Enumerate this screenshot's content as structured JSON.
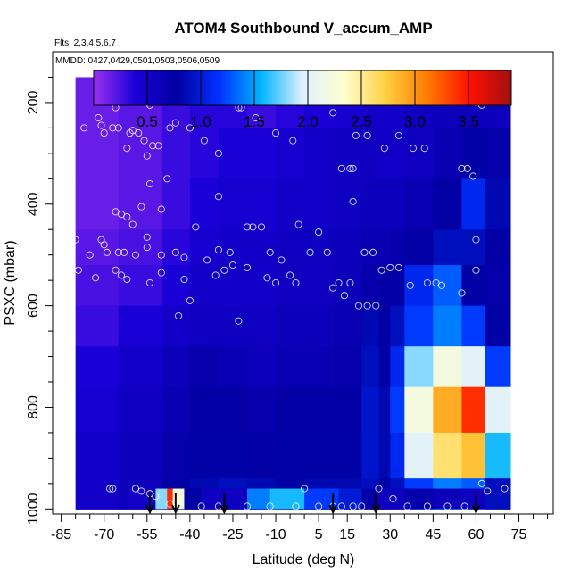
{
  "chart_data": {
    "type": "heatmap",
    "title": "ATOM4 Southbound V_accum_AMP",
    "subtitle_flights": "Flts: 2,3,4,5,6,7",
    "subtitle_dates": "MMDD: 0427,0429,0501,0503,0506,0509",
    "xlabel": "Latitude (deg N)",
    "ylabel": "PSXC (mbar)",
    "xlim": [
      -88,
      87
    ],
    "ylim": [
      1010,
      100
    ],
    "x_ticks": [
      -85,
      -70,
      -55,
      -40,
      -25,
      -10,
      5,
      15,
      30,
      45,
      60,
      75
    ],
    "x_tick_labels": [
      "-85",
      "-70",
      "-55",
      "-40",
      "-25",
      "-10",
      "5",
      "15",
      "30",
      "45",
      "60",
      "75"
    ],
    "y_ticks": [
      200,
      400,
      600,
      800,
      1000
    ],
    "y_tick_labels": [
      "200",
      "400",
      "600",
      "800",
      "1000"
    ],
    "colorbar": {
      "range": [
        0,
        3.9
      ],
      "ticks": [
        0.5,
        1.0,
        1.5,
        2.0,
        2.5,
        3.0,
        3.5
      ],
      "tick_labels": [
        "0.5",
        "1.0",
        "1.5",
        "2.0",
        "2.5",
        "3.0",
        "3.5"
      ],
      "colors": [
        "#9a30f0",
        "#1a00d8",
        "#0000a0",
        "#0030ff",
        "#00b4ff",
        "#dff0ff",
        "#ffffcf",
        "#ffd040",
        "#ff7a00",
        "#ff1000",
        "#a01010"
      ]
    },
    "field": {
      "lat_edges": [
        -80,
        -65,
        -50,
        -40,
        -30,
        -20,
        -10,
        0,
        10,
        20,
        26,
        30,
        35,
        45,
        55,
        63,
        72
      ],
      "pres_edges": [
        150,
        250,
        350,
        450,
        520,
        600,
        680,
        760,
        850,
        940,
        1000
      ],
      "values": [
        [
          0.15,
          0.2,
          0.3,
          0.35,
          0.35,
          0.3,
          0.35,
          0.4,
          0.45,
          0.5,
          0.5,
          0.5,
          0.55,
          0.6,
          0.6,
          0.6
        ],
        [
          0.15,
          0.2,
          0.3,
          0.35,
          0.4,
          0.4,
          0.45,
          0.5,
          0.55,
          0.55,
          0.5,
          0.5,
          0.55,
          0.65,
          0.8,
          0.7
        ],
        [
          0.15,
          0.2,
          0.3,
          0.4,
          0.45,
          0.45,
          0.5,
          0.5,
          0.55,
          0.6,
          0.6,
          0.6,
          0.65,
          0.75,
          1.1,
          0.85
        ],
        [
          0.2,
          0.25,
          0.35,
          0.45,
          0.5,
          0.5,
          0.55,
          0.55,
          0.6,
          0.65,
          0.65,
          0.7,
          0.75,
          0.9,
          0.9,
          0.75
        ],
        [
          0.25,
          0.3,
          0.4,
          0.5,
          0.5,
          0.5,
          0.55,
          0.55,
          0.6,
          0.7,
          0.75,
          0.75,
          1.1,
          1.3,
          0.8,
          0.7
        ],
        [
          0.3,
          0.4,
          0.5,
          0.55,
          0.55,
          0.55,
          0.6,
          0.6,
          0.65,
          0.85,
          0.75,
          0.9,
          1.2,
          1.4,
          1.2,
          0.8
        ],
        [
          0.4,
          0.5,
          0.6,
          0.7,
          0.65,
          0.6,
          0.65,
          0.65,
          0.7,
          0.9,
          0.8,
          1.1,
          1.8,
          2.2,
          2.0,
          1.2
        ],
        [
          0.45,
          0.55,
          0.65,
          0.75,
          0.75,
          0.7,
          0.75,
          0.75,
          0.75,
          0.95,
          0.85,
          1.2,
          2.2,
          2.9,
          3.4,
          2.0
        ],
        [
          0.5,
          0.6,
          0.7,
          0.8,
          0.8,
          0.75,
          0.8,
          0.8,
          0.8,
          0.95,
          0.85,
          1.1,
          2.0,
          2.6,
          2.8,
          1.6
        ],
        [
          0.5,
          0.6,
          0.75,
          0.85,
          0.9,
          0.85,
          0.8,
          0.85,
          0.85,
          0.9,
          0.8,
          0.9,
          1.2,
          1.4,
          1.3,
          0.9
        ]
      ],
      "surface_band": {
        "pres_range": [
          960,
          1000
        ],
        "lat_edges": [
          -62,
          -52,
          -48,
          -46,
          -42,
          -36,
          -20,
          -12,
          0,
          12,
          20,
          26,
          35,
          45,
          55,
          63
        ],
        "values": [
          0.5,
          1.8,
          3.4,
          2.2,
          0.8,
          0.55,
          1.4,
          1.6,
          1.2,
          1.0,
          0.7,
          0.55,
          0.7,
          0.6,
          0.55
        ]
      }
    },
    "sample_points": [
      [
        -85,
        240
      ],
      [
        -83,
        245
      ],
      [
        -77,
        250
      ],
      [
        -72,
        230
      ],
      [
        -71,
        245
      ],
      [
        -70,
        260
      ],
      [
        -67,
        250
      ],
      [
        -65,
        250
      ],
      [
        -66,
        210
      ],
      [
        -62,
        290
      ],
      [
        -61,
        260
      ],
      [
        -60,
        255
      ],
      [
        -58,
        260
      ],
      [
        -56,
        275
      ],
      [
        -55,
        200
      ],
      [
        -54,
        205
      ],
      [
        -53,
        285
      ],
      [
        -51,
        285
      ],
      [
        -47,
        250
      ],
      [
        -45,
        240
      ],
      [
        -40,
        250
      ],
      [
        -35,
        275
      ],
      [
        -30,
        300
      ],
      [
        -23,
        210
      ],
      [
        -22,
        210
      ],
      [
        -17,
        230
      ],
      [
        -10,
        260
      ],
      [
        -4,
        275
      ],
      [
        10,
        220
      ],
      [
        18,
        265
      ],
      [
        22,
        265
      ],
      [
        28,
        290
      ],
      [
        33,
        265
      ],
      [
        38,
        290
      ],
      [
        42,
        290
      ],
      [
        60,
        200
      ],
      [
        62,
        205
      ],
      [
        13,
        330
      ],
      [
        16,
        330
      ],
      [
        17,
        330
      ],
      [
        -55,
        305
      ],
      [
        -54,
        360
      ],
      [
        -48,
        350
      ],
      [
        -30,
        385
      ],
      [
        17,
        395
      ],
      [
        55,
        330
      ],
      [
        57,
        330
      ],
      [
        59,
        345
      ],
      [
        -66,
        415
      ],
      [
        -64,
        420
      ],
      [
        -62,
        425
      ],
      [
        -60,
        440
      ],
      [
        -57,
        405
      ],
      [
        -55,
        465
      ],
      [
        -50,
        410
      ],
      [
        -38,
        445
      ],
      [
        -20,
        445
      ],
      [
        -18,
        445
      ],
      [
        -15,
        445
      ],
      [
        -2,
        440
      ],
      [
        5,
        455
      ],
      [
        60,
        470
      ],
      [
        -80,
        470
      ],
      [
        -75,
        500
      ],
      [
        -71,
        470
      ],
      [
        -70,
        480
      ],
      [
        -69,
        495
      ],
      [
        -65,
        495
      ],
      [
        -63,
        495
      ],
      [
        -59,
        500
      ],
      [
        -55,
        485
      ],
      [
        -50,
        500
      ],
      [
        -45,
        495
      ],
      [
        -42,
        505
      ],
      [
        -34,
        510
      ],
      [
        -30,
        490
      ],
      [
        -26,
        495
      ],
      [
        -20,
        525
      ],
      [
        -12,
        495
      ],
      [
        -8,
        510
      ],
      [
        -5,
        540
      ],
      [
        2,
        495
      ],
      [
        8,
        495
      ],
      [
        12,
        555
      ],
      [
        16,
        555
      ],
      [
        21,
        495
      ],
      [
        24,
        495
      ],
      [
        27,
        530
      ],
      [
        30,
        525
      ],
      [
        33,
        525
      ],
      [
        43,
        555
      ],
      [
        46,
        555
      ],
      [
        60,
        530
      ],
      [
        -79,
        530
      ],
      [
        -73,
        545
      ],
      [
        -66,
        530
      ],
      [
        -64,
        540
      ],
      [
        -62,
        548
      ],
      [
        -54,
        555
      ],
      [
        -50,
        535
      ],
      [
        -42,
        548
      ],
      [
        -31,
        540
      ],
      [
        -28,
        530
      ],
      [
        -25,
        520
      ],
      [
        -13,
        545
      ],
      [
        -10,
        555
      ],
      [
        -3,
        555
      ],
      [
        10,
        565
      ],
      [
        14,
        580
      ],
      [
        19,
        600
      ],
      [
        22,
        600
      ],
      [
        25,
        600
      ],
      [
        -40,
        590
      ],
      [
        -44,
        620
      ],
      [
        -23,
        630
      ],
      [
        37,
        560
      ],
      [
        48,
        560
      ],
      [
        55,
        575
      ],
      [
        -68,
        960
      ],
      [
        -67,
        960
      ],
      [
        -59,
        960
      ],
      [
        -57,
        965
      ],
      [
        -54,
        970
      ],
      [
        -52,
        975
      ],
      [
        -47,
        990
      ],
      [
        -36,
        995
      ],
      [
        -30,
        995
      ],
      [
        -20,
        995
      ],
      [
        -12,
        995
      ],
      [
        -3,
        995
      ],
      [
        0,
        960
      ],
      [
        5,
        995
      ],
      [
        10,
        995
      ],
      [
        13,
        995
      ],
      [
        17,
        995
      ],
      [
        20,
        995
      ],
      [
        26,
        960
      ],
      [
        31,
        980
      ],
      [
        36,
        995
      ],
      [
        43,
        995
      ],
      [
        50,
        995
      ],
      [
        56,
        995
      ],
      [
        62,
        950
      ],
      [
        64,
        965
      ],
      [
        70,
        960
      ]
    ],
    "arrow_lats": [
      -54,
      -45,
      -28,
      10,
      25,
      60
    ]
  }
}
